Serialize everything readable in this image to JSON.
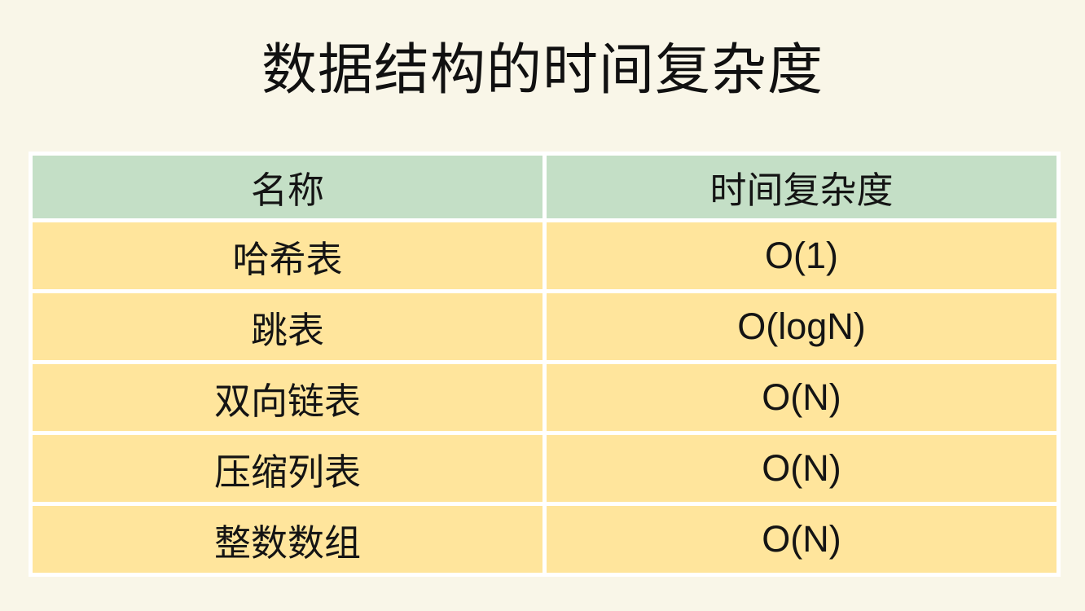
{
  "page": {
    "background_color": "#f9f6e8",
    "grid_color": "#ffffff",
    "header_bg_color": "#c4dfc6",
    "row_bg_color": "#ffe59c",
    "text_color": "#141414"
  },
  "chart_data": {
    "type": "table",
    "title": "数据结构的时间复杂度",
    "columns": [
      "名称",
      "时间复杂度"
    ],
    "rows": [
      [
        "哈希表",
        "O(1)"
      ],
      [
        "跳表",
        "O(logN)"
      ],
      [
        "双向链表",
        "O(N)"
      ],
      [
        "压缩列表",
        "O(N)"
      ],
      [
        "整数数组",
        "O(N)"
      ]
    ],
    "layout_hints": {
      "title_position": "top-center",
      "column_alignment": [
        "center",
        "center"
      ],
      "header_style": "green-filled",
      "body_style": "yellow-filled",
      "gridlines": "white-thick"
    }
  }
}
